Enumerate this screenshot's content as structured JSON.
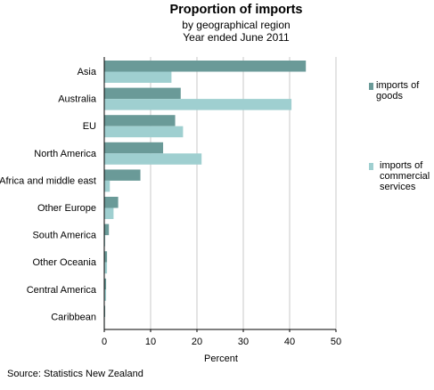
{
  "chart_data": {
    "type": "bar",
    "orientation": "horizontal",
    "title": "Proportion of imports",
    "subtitle": [
      "by geographical  region",
      "Year ended June 2011"
    ],
    "xlabel": "Percent",
    "ylabel": "",
    "xlim": [
      0,
      50
    ],
    "xticks": [
      "0",
      "10",
      "20",
      "30",
      "40",
      "50"
    ],
    "grid": "vertical",
    "legend_position": "right",
    "categories": [
      "Asia",
      "Australia",
      "EU",
      "North America",
      "Africa and middle east",
      "Other Europe",
      "South America",
      "Other Oceania",
      "Central America",
      "Caribbean"
    ],
    "series": [
      {
        "name": "imports of goods",
        "legend_lines": [
          "imports of",
          "goods"
        ],
        "color": "#6a9a98",
        "values": [
          43.5,
          16.5,
          15.3,
          12.7,
          7.8,
          3.0,
          1.0,
          0.6,
          0.4,
          0.2
        ]
      },
      {
        "name": "imports of commercial services",
        "legend_lines": [
          "imports of",
          "commercial",
          "services"
        ],
        "color": "#9fcfd0",
        "values": [
          14.5,
          40.4,
          17.0,
          21.0,
          1.2,
          2.0,
          0.2,
          0.6,
          0.4,
          0.1
        ]
      }
    ]
  },
  "source": "Source: Statistics New Zealand"
}
